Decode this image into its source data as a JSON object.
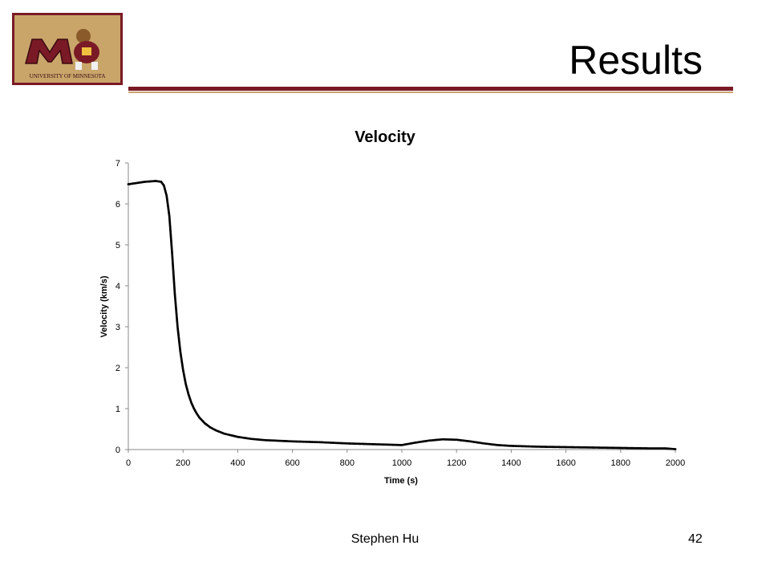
{
  "slide": {
    "title": "Results",
    "footer_author": "Stephen Hu",
    "page_number": "42",
    "logo_text": "UNIVERSITY OF MINNESOTA",
    "accent_color": "#7a1a26",
    "gold_color": "#c8a472"
  },
  "chart_data": {
    "type": "scatter",
    "title": "Velocity",
    "xlabel": "Time  (s)",
    "ylabel": "Velocity  (km/s)",
    "xlim": [
      0,
      2000
    ],
    "ylim": [
      0,
      7
    ],
    "xticks": [
      0,
      200,
      400,
      600,
      800,
      1000,
      1200,
      1400,
      1600,
      1800,
      2000
    ],
    "yticks": [
      0,
      1,
      2,
      3,
      4,
      5,
      6,
      7
    ],
    "grid": false,
    "legend": "none",
    "marker_color": "#000000",
    "series": [
      {
        "x": [
          0,
          20,
          40,
          60,
          80,
          100,
          120,
          130,
          140,
          150,
          160,
          170,
          180,
          190,
          200,
          210,
          220,
          230,
          240,
          250,
          260,
          280,
          300,
          320,
          350,
          400,
          450,
          500,
          600,
          700,
          800,
          900,
          1000,
          1050,
          1100,
          1150,
          1200,
          1250,
          1300,
          1350,
          1400,
          1500,
          1600,
          1700,
          1800,
          1900,
          1960,
          2000
        ],
        "y": [
          6.48,
          6.5,
          6.52,
          6.54,
          6.55,
          6.56,
          6.54,
          6.45,
          6.2,
          5.7,
          4.8,
          3.8,
          3.0,
          2.4,
          1.95,
          1.6,
          1.35,
          1.15,
          1.0,
          0.88,
          0.78,
          0.64,
          0.54,
          0.47,
          0.39,
          0.31,
          0.26,
          0.23,
          0.2,
          0.18,
          0.15,
          0.13,
          0.11,
          0.17,
          0.22,
          0.25,
          0.24,
          0.2,
          0.15,
          0.11,
          0.09,
          0.07,
          0.06,
          0.05,
          0.04,
          0.03,
          0.03,
          0.01
        ]
      }
    ]
  }
}
